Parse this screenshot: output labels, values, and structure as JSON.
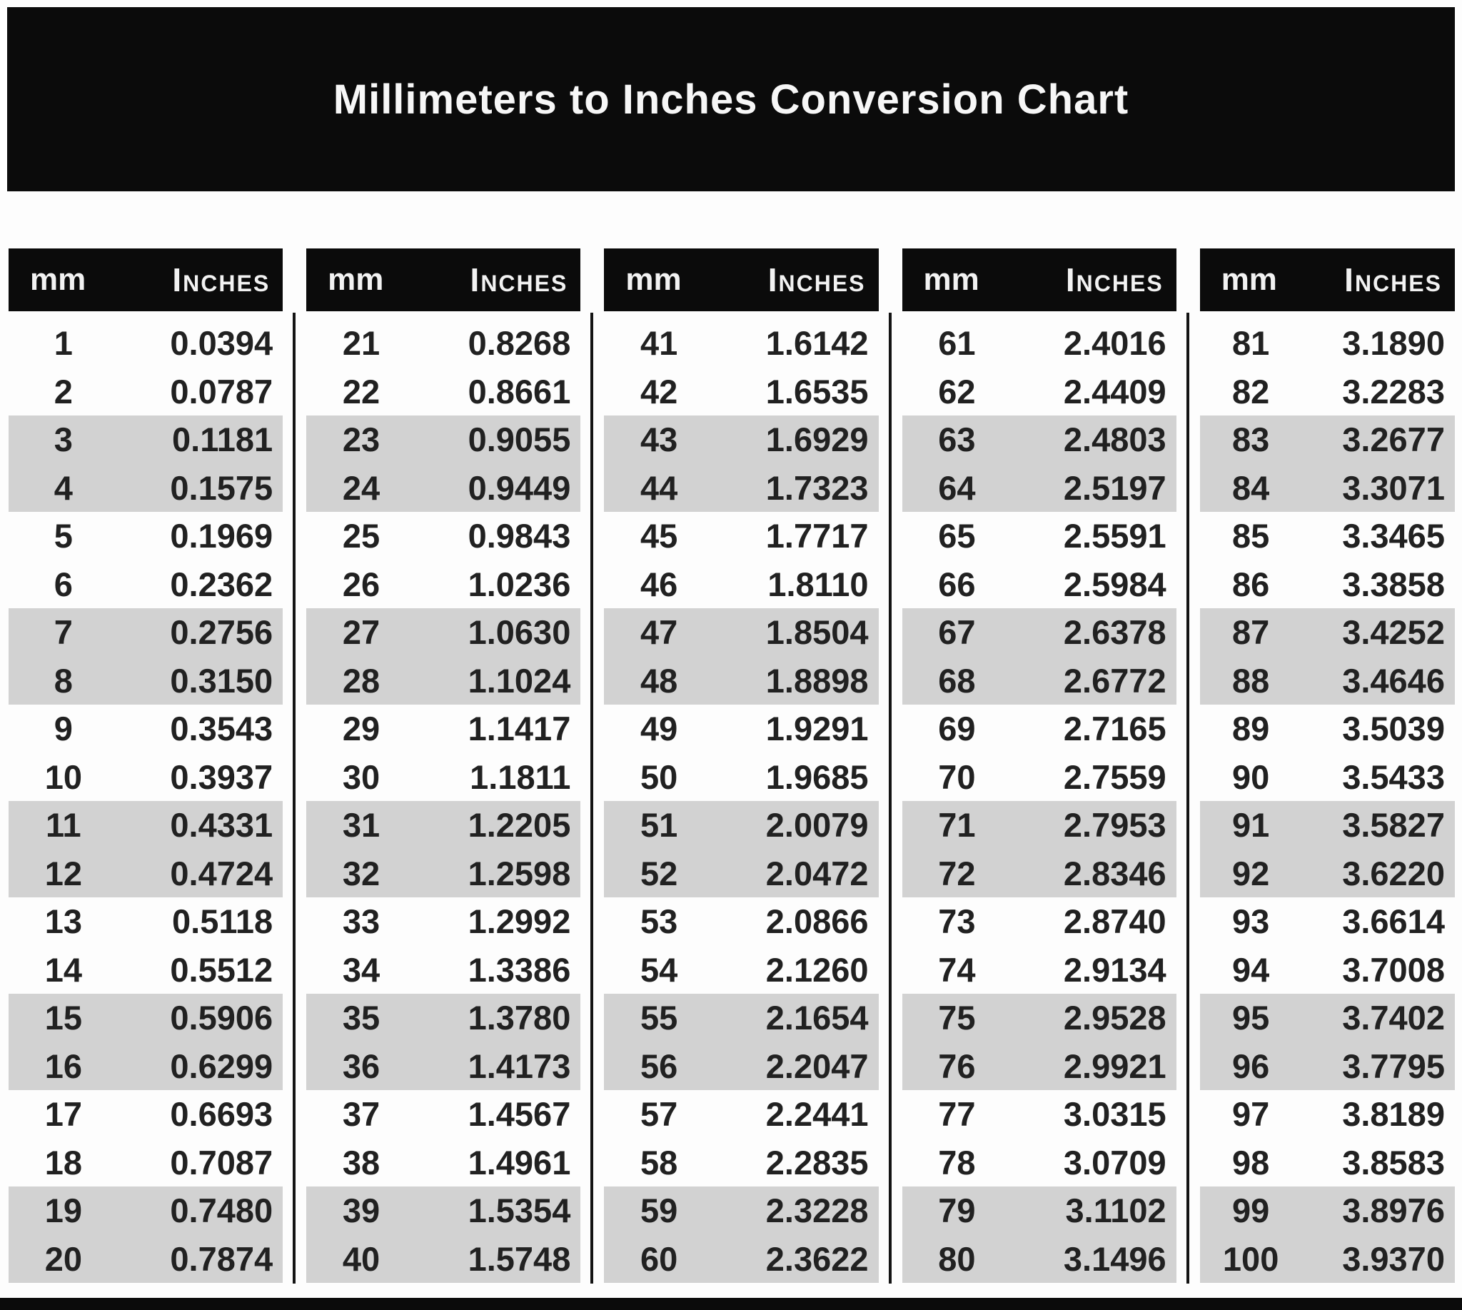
{
  "title": "Millimeters to Inches Conversion Chart",
  "colors": {
    "bar_background": "#0b0b0b",
    "band_background": "#d2d2d2",
    "header_text": "#f2f2f2",
    "value_text": "#212121"
  },
  "table": {
    "header": {
      "mm": "mm",
      "inches": "Inches"
    },
    "groups": [
      {
        "rows": [
          {
            "mm": "1",
            "in": "0.0394"
          },
          {
            "mm": "2",
            "in": "0.0787"
          },
          {
            "mm": "3",
            "in": "0.1181"
          },
          {
            "mm": "4",
            "in": "0.1575"
          },
          {
            "mm": "5",
            "in": "0.1969"
          },
          {
            "mm": "6",
            "in": "0.2362"
          },
          {
            "mm": "7",
            "in": "0.2756"
          },
          {
            "mm": "8",
            "in": "0.3150"
          },
          {
            "mm": "9",
            "in": "0.3543"
          },
          {
            "mm": "10",
            "in": "0.3937"
          },
          {
            "mm": "11",
            "in": "0.4331"
          },
          {
            "mm": "12",
            "in": "0.4724"
          },
          {
            "mm": "13",
            "in": "0.5118"
          },
          {
            "mm": "14",
            "in": "0.5512"
          },
          {
            "mm": "15",
            "in": "0.5906"
          },
          {
            "mm": "16",
            "in": "0.6299"
          },
          {
            "mm": "17",
            "in": "0.6693"
          },
          {
            "mm": "18",
            "in": "0.7087"
          },
          {
            "mm": "19",
            "in": "0.7480"
          },
          {
            "mm": "20",
            "in": "0.7874"
          }
        ]
      },
      {
        "rows": [
          {
            "mm": "21",
            "in": "0.8268"
          },
          {
            "mm": "22",
            "in": "0.8661"
          },
          {
            "mm": "23",
            "in": "0.9055"
          },
          {
            "mm": "24",
            "in": "0.9449"
          },
          {
            "mm": "25",
            "in": "0.9843"
          },
          {
            "mm": "26",
            "in": "1.0236"
          },
          {
            "mm": "27",
            "in": "1.0630"
          },
          {
            "mm": "28",
            "in": "1.1024"
          },
          {
            "mm": "29",
            "in": "1.1417"
          },
          {
            "mm": "30",
            "in": "1.1811"
          },
          {
            "mm": "31",
            "in": "1.2205"
          },
          {
            "mm": "32",
            "in": "1.2598"
          },
          {
            "mm": "33",
            "in": "1.2992"
          },
          {
            "mm": "34",
            "in": "1.3386"
          },
          {
            "mm": "35",
            "in": "1.3780"
          },
          {
            "mm": "36",
            "in": "1.4173"
          },
          {
            "mm": "37",
            "in": "1.4567"
          },
          {
            "mm": "38",
            "in": "1.4961"
          },
          {
            "mm": "39",
            "in": "1.5354"
          },
          {
            "mm": "40",
            "in": "1.5748"
          }
        ]
      },
      {
        "rows": [
          {
            "mm": "41",
            "in": "1.6142"
          },
          {
            "mm": "42",
            "in": "1.6535"
          },
          {
            "mm": "43",
            "in": "1.6929"
          },
          {
            "mm": "44",
            "in": "1.7323"
          },
          {
            "mm": "45",
            "in": "1.7717"
          },
          {
            "mm": "46",
            "in": "1.8110"
          },
          {
            "mm": "47",
            "in": "1.8504"
          },
          {
            "mm": "48",
            "in": "1.8898"
          },
          {
            "mm": "49",
            "in": "1.9291"
          },
          {
            "mm": "50",
            "in": "1.9685"
          },
          {
            "mm": "51",
            "in": "2.0079"
          },
          {
            "mm": "52",
            "in": "2.0472"
          },
          {
            "mm": "53",
            "in": "2.0866"
          },
          {
            "mm": "54",
            "in": "2.1260"
          },
          {
            "mm": "55",
            "in": "2.1654"
          },
          {
            "mm": "56",
            "in": "2.2047"
          },
          {
            "mm": "57",
            "in": "2.2441"
          },
          {
            "mm": "58",
            "in": "2.2835"
          },
          {
            "mm": "59",
            "in": "2.3228"
          },
          {
            "mm": "60",
            "in": "2.3622"
          }
        ]
      },
      {
        "rows": [
          {
            "mm": "61",
            "in": "2.4016"
          },
          {
            "mm": "62",
            "in": "2.4409"
          },
          {
            "mm": "63",
            "in": "2.4803"
          },
          {
            "mm": "64",
            "in": "2.5197"
          },
          {
            "mm": "65",
            "in": "2.5591"
          },
          {
            "mm": "66",
            "in": "2.5984"
          },
          {
            "mm": "67",
            "in": "2.6378"
          },
          {
            "mm": "68",
            "in": "2.6772"
          },
          {
            "mm": "69",
            "in": "2.7165"
          },
          {
            "mm": "70",
            "in": "2.7559"
          },
          {
            "mm": "71",
            "in": "2.7953"
          },
          {
            "mm": "72",
            "in": "2.8346"
          },
          {
            "mm": "73",
            "in": "2.8740"
          },
          {
            "mm": "74",
            "in": "2.9134"
          },
          {
            "mm": "75",
            "in": "2.9528"
          },
          {
            "mm": "76",
            "in": "2.9921"
          },
          {
            "mm": "77",
            "in": "3.0315"
          },
          {
            "mm": "78",
            "in": "3.0709"
          },
          {
            "mm": "79",
            "in": "3.1102"
          },
          {
            "mm": "80",
            "in": "3.1496"
          }
        ]
      },
      {
        "rows": [
          {
            "mm": "81",
            "in": "3.1890"
          },
          {
            "mm": "82",
            "in": "3.2283"
          },
          {
            "mm": "83",
            "in": "3.2677"
          },
          {
            "mm": "84",
            "in": "3.3071"
          },
          {
            "mm": "85",
            "in": "3.3465"
          },
          {
            "mm": "86",
            "in": "3.3858"
          },
          {
            "mm": "87",
            "in": "3.4252"
          },
          {
            "mm": "88",
            "in": "3.4646"
          },
          {
            "mm": "89",
            "in": "3.5039"
          },
          {
            "mm": "90",
            "in": "3.5433"
          },
          {
            "mm": "91",
            "in": "3.5827"
          },
          {
            "mm": "92",
            "in": "3.6220"
          },
          {
            "mm": "93",
            "in": "3.6614"
          },
          {
            "mm": "94",
            "in": "3.7008"
          },
          {
            "mm": "95",
            "in": "3.7402"
          },
          {
            "mm": "96",
            "in": "3.7795"
          },
          {
            "mm": "97",
            "in": "3.8189"
          },
          {
            "mm": "98",
            "in": "3.8583"
          },
          {
            "mm": "99",
            "in": "3.8976"
          },
          {
            "mm": "100",
            "in": "3.9370"
          }
        ]
      }
    ]
  }
}
